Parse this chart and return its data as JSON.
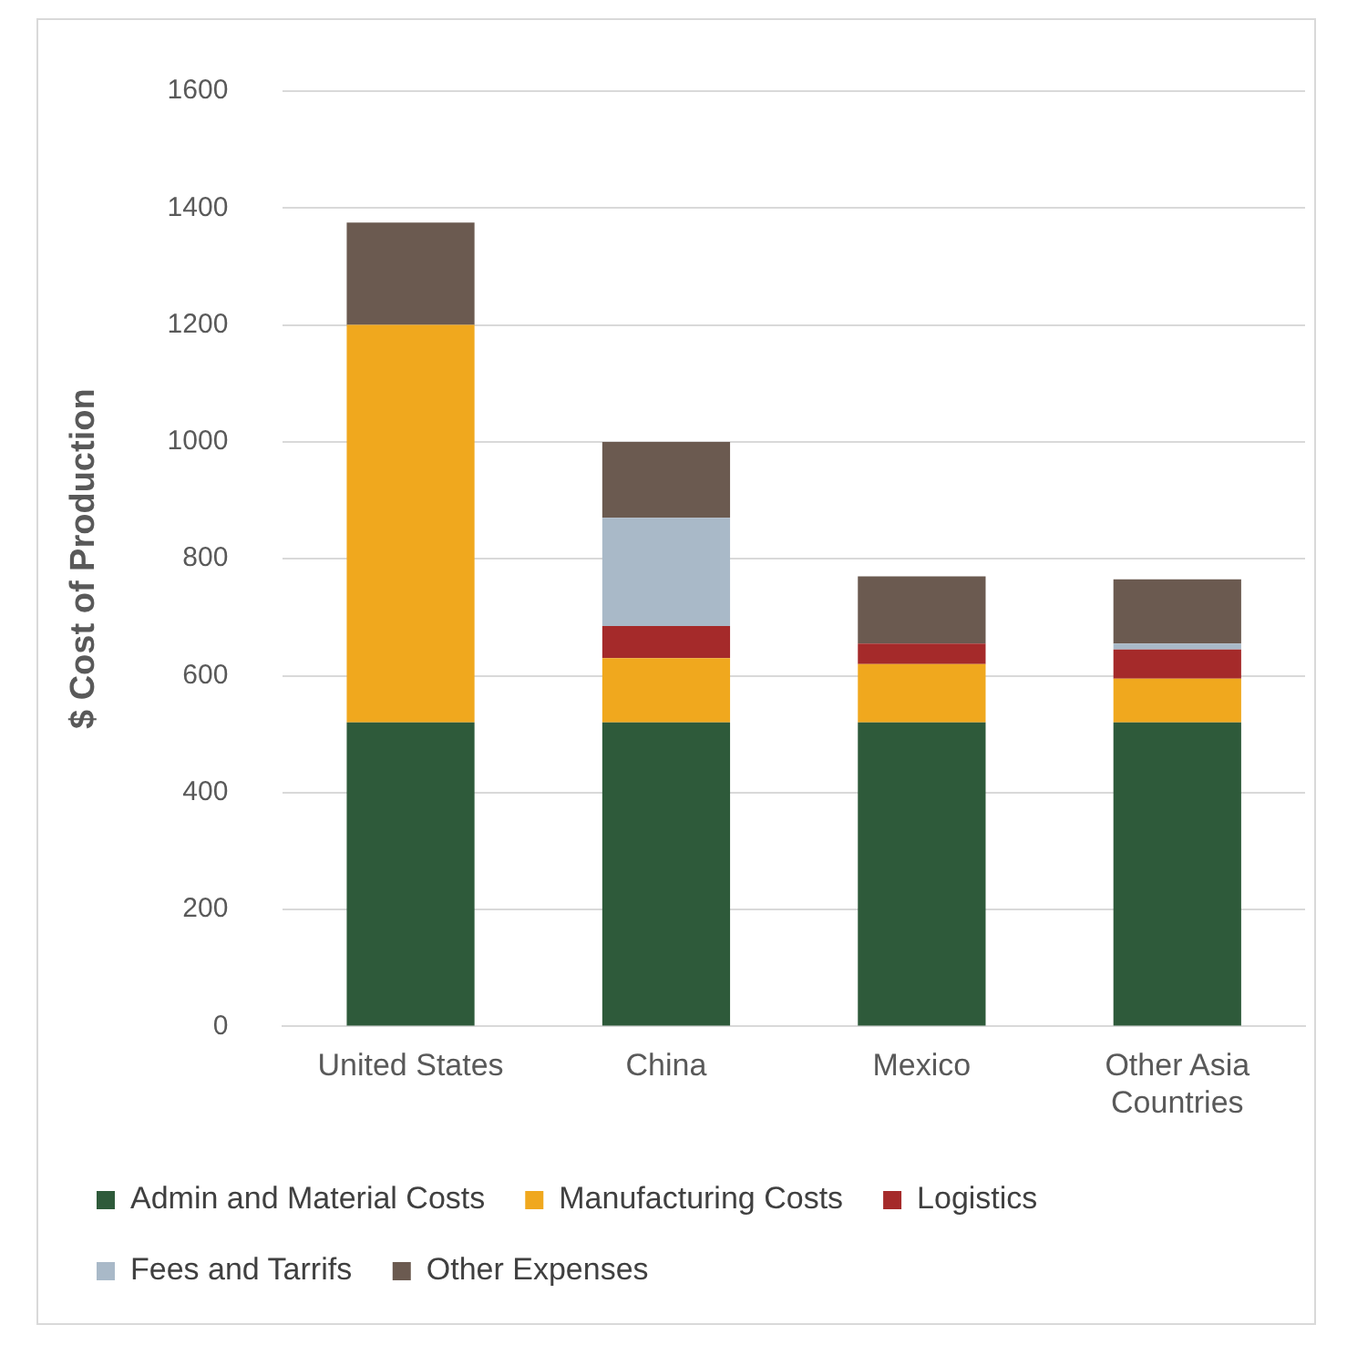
{
  "chart_data": {
    "type": "bar",
    "stacked": true,
    "ylabel": "$ Cost of Production",
    "categories": [
      "United States",
      "China",
      "Mexico",
      "Other Asia Countries"
    ],
    "series": [
      {
        "name": "Admin and Material Costs",
        "color": "#2e5a3a",
        "values": [
          520,
          520,
          520,
          520
        ]
      },
      {
        "name": "Manufacturing Costs",
        "color": "#f0a81e",
        "values": [
          680,
          110,
          100,
          75
        ]
      },
      {
        "name": "Logistics",
        "color": "#a52a2a",
        "values": [
          0,
          55,
          35,
          50
        ]
      },
      {
        "name": "Fees and Tarrifs",
        "color": "#a9b9c8",
        "values": [
          0,
          185,
          0,
          10
        ]
      },
      {
        "name": "Other Expenses",
        "color": "#6b5a50",
        "values": [
          175,
          130,
          115,
          110
        ]
      }
    ],
    "ylim": [
      0,
      1600
    ],
    "yticks": [
      0,
      200,
      400,
      600,
      800,
      1000,
      1200,
      1400,
      1600
    ],
    "grid": "y",
    "legend": "bottom"
  }
}
